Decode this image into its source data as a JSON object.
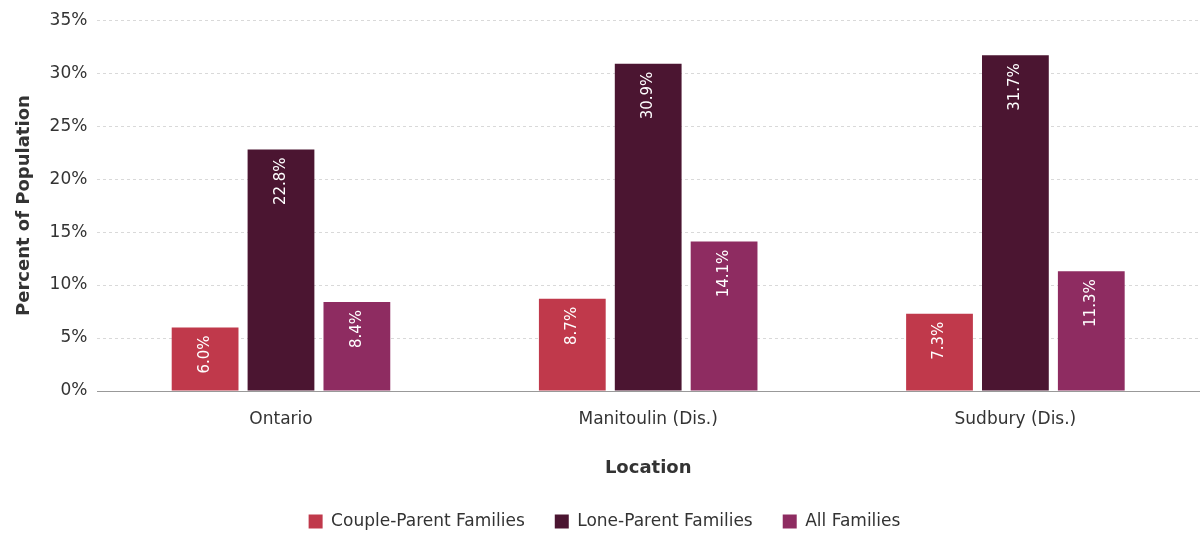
{
  "chart_data": {
    "type": "bar",
    "xlabel": "Location",
    "ylabel": "Percent of Population",
    "categories": [
      "Ontario",
      "Manitoulin (Dis.)",
      "Sudbury (Dis.)"
    ],
    "series": [
      {
        "name": "Couple-Parent Families",
        "color": "#c0394b",
        "values": [
          6.0,
          8.7,
          7.3
        ],
        "value_labels": [
          "6.0%",
          "8.7%",
          "7.3%"
        ]
      },
      {
        "name": "Lone-Parent Families",
        "color": "#4b1531",
        "values": [
          22.8,
          30.9,
          31.7
        ],
        "value_labels": [
          "22.8%",
          "30.9%",
          "31.7%"
        ]
      },
      {
        "name": "All Families",
        "color": "#8e2c61",
        "values": [
          8.4,
          14.1,
          11.3
        ],
        "value_labels": [
          "8.4%",
          "14.1%",
          "11.3%"
        ]
      }
    ],
    "ylim": [
      0,
      35
    ],
    "yticks": [
      {
        "value": 0,
        "label": "0%"
      },
      {
        "value": 5,
        "label": "5%"
      },
      {
        "value": 10,
        "label": "10%"
      },
      {
        "value": 15,
        "label": "15%"
      },
      {
        "value": 20,
        "label": "20%"
      },
      {
        "value": 25,
        "label": "25%"
      },
      {
        "value": 30,
        "label": "30%"
      },
      {
        "value": 35,
        "label": "35%"
      }
    ],
    "grid": "y",
    "legend": "bottom"
  }
}
